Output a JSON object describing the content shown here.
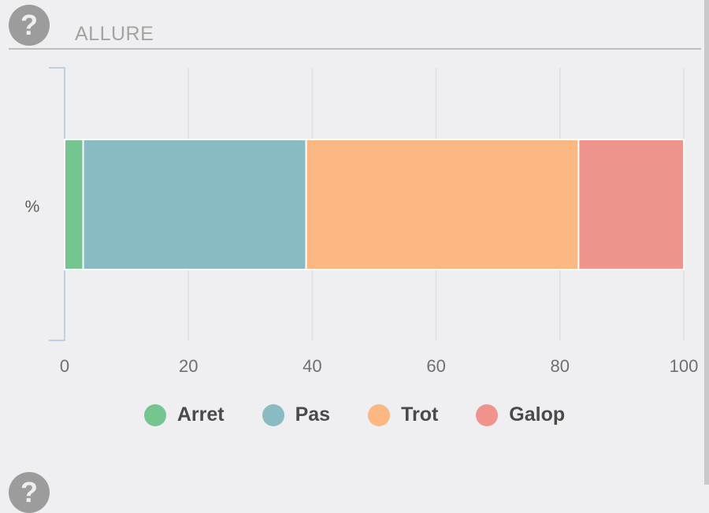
{
  "section": {
    "title": "ALLURE",
    "help_symbol": "?"
  },
  "chart_data": {
    "type": "bar",
    "orientation": "horizontal",
    "stacked": true,
    "categories": [
      "%"
    ],
    "series": [
      {
        "name": "Arret",
        "values": [
          3
        ],
        "color": "#75c591"
      },
      {
        "name": "Pas",
        "values": [
          36
        ],
        "color": "#88bcc2"
      },
      {
        "name": "Trot",
        "values": [
          44
        ],
        "color": "#fbb883"
      },
      {
        "name": "Galop",
        "values": [
          17
        ],
        "color": "#ef948d"
      }
    ],
    "xticks": [
      "0",
      "20",
      "40",
      "60",
      "80",
      "100"
    ],
    "xlim": [
      0,
      100
    ],
    "ylabel": "%",
    "grid": true,
    "legend": "bottom"
  },
  "icons": {
    "help": "question-circle-icon"
  }
}
